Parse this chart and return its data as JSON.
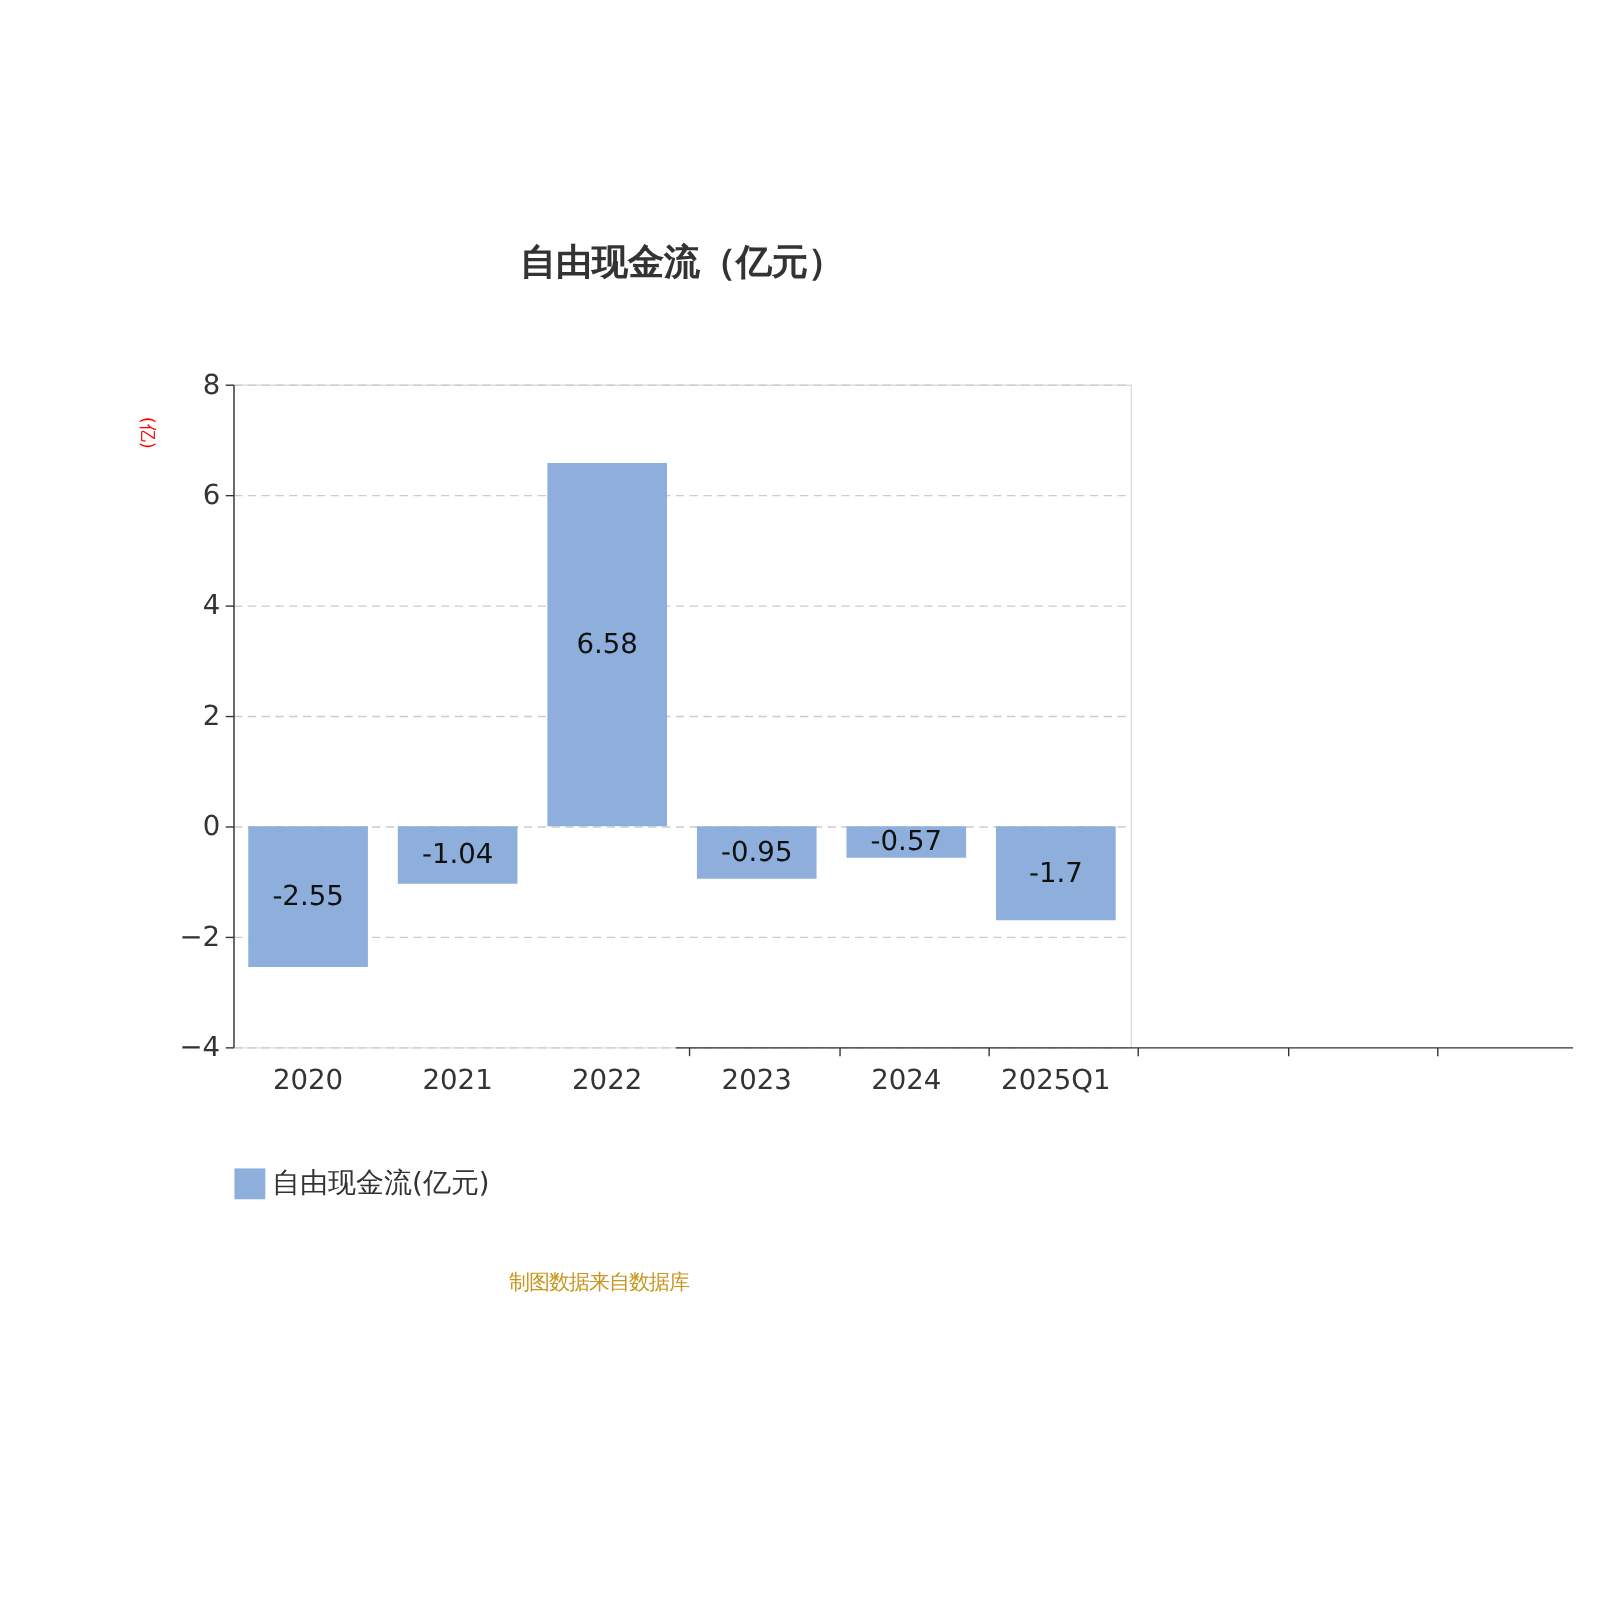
{
  "chart_data": {
    "type": "bar",
    "title": "自由现金流（亿元）",
    "ylabel": "(亿)",
    "categories": [
      "2020",
      "2021",
      "2022",
      "2023",
      "2024",
      "2025Q1"
    ],
    "series": [
      {
        "name": "自由现金流(亿元)",
        "color": "#8eaedb",
        "values": [
          -2.55,
          -1.04,
          6.58,
          -0.95,
          -0.57,
          -1.7
        ]
      }
    ],
    "ylim": [
      -4,
      8
    ],
    "yticks": [
      -4,
      -2,
      0,
      2,
      4,
      6,
      8
    ],
    "grid": "y",
    "legend": "bottom",
    "data_labels": true,
    "annotations": [
      "制图数据来自数据库"
    ]
  }
}
